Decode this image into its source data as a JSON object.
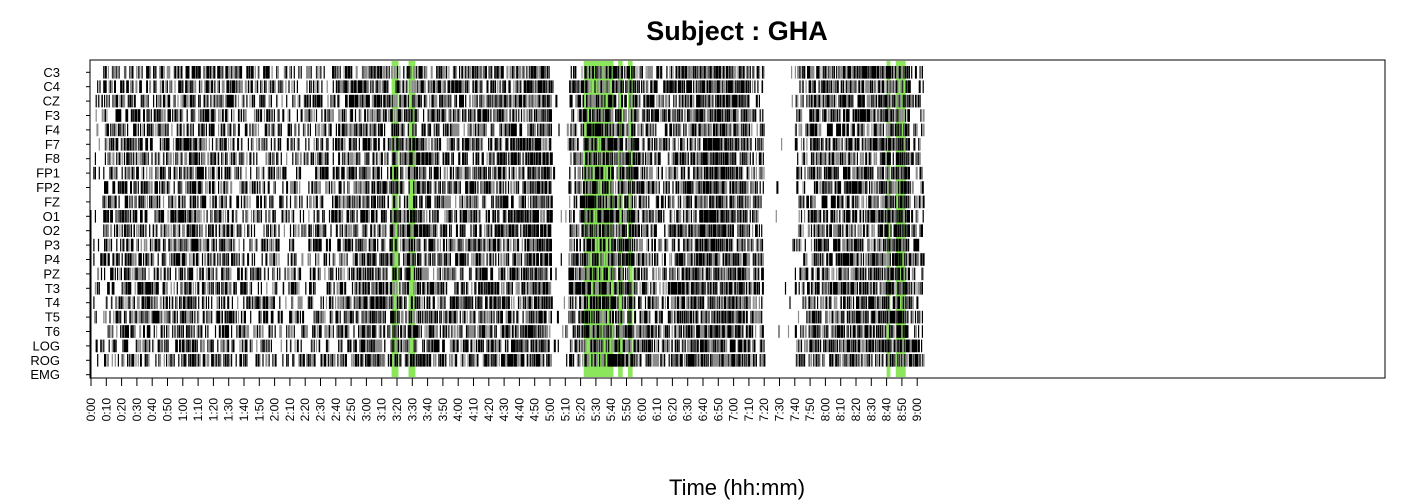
{
  "chart_data": {
    "type": "heatmap",
    "title": "Subject : GHA",
    "xlabel": "Time (hh:mm)",
    "ylabel": "",
    "channels": [
      "C3",
      "C4",
      "CZ",
      "F3",
      "F4",
      "F7",
      "F8",
      "FP1",
      "FP2",
      "FZ",
      "O1",
      "O2",
      "P3",
      "P4",
      "PZ",
      "T3",
      "T4",
      "T5",
      "T6",
      "LOG",
      "ROG",
      "EMG"
    ],
    "x_tick_labels": [
      "0:00",
      "0:10",
      "0:20",
      "0:30",
      "0:40",
      "0:50",
      "1:00",
      "1:10",
      "1:20",
      "1:30",
      "1:40",
      "1:50",
      "2:00",
      "2:10",
      "2:20",
      "2:30",
      "2:40",
      "2:50",
      "3:00",
      "3:10",
      "3:20",
      "3:30",
      "3:40",
      "3:50",
      "4:00",
      "4:10",
      "4:20",
      "4:30",
      "4:40",
      "4:50",
      "5:00",
      "5:10",
      "5:20",
      "5:30",
      "5:40",
      "5:50",
      "6:00",
      "6:10",
      "6:20",
      "6:30",
      "6:40",
      "6:50",
      "7:00",
      "7:10",
      "7:20",
      "7:30",
      "7:40",
      "7:50",
      "8:00",
      "8:10",
      "8:20",
      "8:30",
      "8:40",
      "8:50",
      "9:00"
    ],
    "x_range_minutes": [
      0,
      544
    ],
    "x_tick_step_minutes": 10,
    "colors": {
      "mark_dark": "#000000",
      "mark_light": "#8c8c8c",
      "highlight": "#7fe34a",
      "background": "#ffffff"
    },
    "highlight_intervals_minutes": [
      [
        196.5,
        201.0
      ],
      [
        207.5,
        212.0
      ],
      [
        322.0,
        341.5
      ],
      [
        344.5,
        347.5
      ],
      [
        351.0,
        354.0
      ],
      [
        520.0,
        522.5
      ],
      [
        526.0,
        532.5
      ]
    ],
    "activity_profile": [
      {
        "start": 0,
        "end": 8,
        "density": 0.12
      },
      {
        "start": 8,
        "end": 20,
        "density": 0.35
      },
      {
        "start": 20,
        "end": 60,
        "density": 0.42
      },
      {
        "start": 60,
        "end": 90,
        "density": 0.48
      },
      {
        "start": 90,
        "end": 115,
        "density": 0.35
      },
      {
        "start": 115,
        "end": 145,
        "density": 0.28
      },
      {
        "start": 145,
        "end": 160,
        "density": 0.33
      },
      {
        "start": 160,
        "end": 175,
        "density": 0.5
      },
      {
        "start": 175,
        "end": 192,
        "density": 0.62
      },
      {
        "start": 192,
        "end": 196,
        "density": 0.3
      },
      {
        "start": 196,
        "end": 225,
        "density": 0.5
      },
      {
        "start": 225,
        "end": 250,
        "density": 0.45
      },
      {
        "start": 250,
        "end": 265,
        "density": 0.52
      },
      {
        "start": 265,
        "end": 285,
        "density": 0.5
      },
      {
        "start": 285,
        "end": 301,
        "density": 0.72
      },
      {
        "start": 301,
        "end": 312,
        "density": 0.03
      },
      {
        "start": 312,
        "end": 322,
        "density": 0.48
      },
      {
        "start": 322,
        "end": 356,
        "density": 0.6
      },
      {
        "start": 356,
        "end": 370,
        "density": 0.5
      },
      {
        "start": 370,
        "end": 380,
        "density": 0.35
      },
      {
        "start": 380,
        "end": 395,
        "density": 0.6
      },
      {
        "start": 395,
        "end": 430,
        "density": 0.72
      },
      {
        "start": 430,
        "end": 440,
        "density": 0.35
      },
      {
        "start": 440,
        "end": 460,
        "density": 0.02
      },
      {
        "start": 460,
        "end": 470,
        "density": 0.3
      },
      {
        "start": 470,
        "end": 515,
        "density": 0.55
      },
      {
        "start": 515,
        "end": 535,
        "density": 0.68
      },
      {
        "start": 535,
        "end": 544,
        "density": 0.3
      }
    ]
  }
}
